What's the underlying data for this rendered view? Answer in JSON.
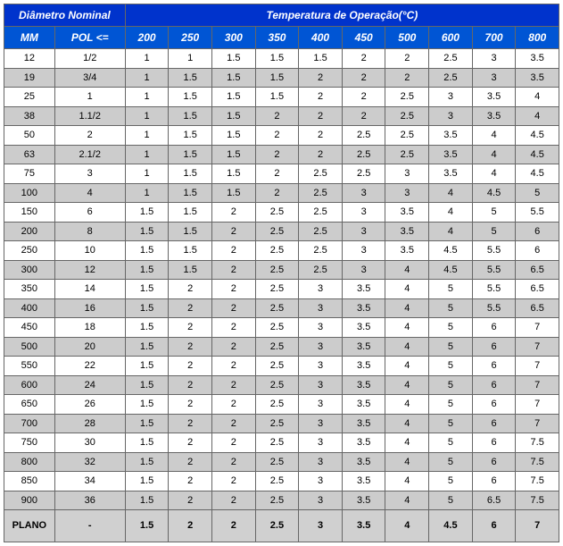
{
  "header": {
    "group_left": "Diâmetro Nominal",
    "group_right": "Temperatura de Operação(°C)",
    "sub": [
      "MM",
      "POL <=",
      "200",
      "250",
      "300",
      "350",
      "400",
      "450",
      "500",
      "600",
      "700",
      "800"
    ]
  },
  "rows": [
    {
      "alt": false,
      "c": [
        "12",
        "1/2",
        "1",
        "1",
        "1.5",
        "1.5",
        "1.5",
        "2",
        "2",
        "2.5",
        "3",
        "3.5"
      ]
    },
    {
      "alt": true,
      "c": [
        "19",
        "3/4",
        "1",
        "1.5",
        "1.5",
        "1.5",
        "2",
        "2",
        "2",
        "2.5",
        "3",
        "3.5"
      ]
    },
    {
      "alt": false,
      "c": [
        "25",
        "1",
        "1",
        "1.5",
        "1.5",
        "1.5",
        "2",
        "2",
        "2.5",
        "3",
        "3.5",
        "4"
      ]
    },
    {
      "alt": true,
      "c": [
        "38",
        "1.1/2",
        "1",
        "1.5",
        "1.5",
        "2",
        "2",
        "2",
        "2.5",
        "3",
        "3.5",
        "4"
      ]
    },
    {
      "alt": false,
      "c": [
        "50",
        "2",
        "1",
        "1.5",
        "1.5",
        "2",
        "2",
        "2.5",
        "2.5",
        "3.5",
        "4",
        "4.5"
      ]
    },
    {
      "alt": true,
      "c": [
        "63",
        "2.1/2",
        "1",
        "1.5",
        "1.5",
        "2",
        "2",
        "2.5",
        "2.5",
        "3.5",
        "4",
        "4.5"
      ]
    },
    {
      "alt": false,
      "c": [
        "75",
        "3",
        "1",
        "1.5",
        "1.5",
        "2",
        "2.5",
        "2.5",
        "3",
        "3.5",
        "4",
        "4.5"
      ]
    },
    {
      "alt": true,
      "c": [
        "100",
        "4",
        "1",
        "1.5",
        "1.5",
        "2",
        "2.5",
        "3",
        "3",
        "4",
        "4.5",
        "5"
      ]
    },
    {
      "alt": false,
      "c": [
        "150",
        "6",
        "1.5",
        "1.5",
        "2",
        "2.5",
        "2.5",
        "3",
        "3.5",
        "4",
        "5",
        "5.5"
      ]
    },
    {
      "alt": true,
      "c": [
        "200",
        "8",
        "1.5",
        "1.5",
        "2",
        "2.5",
        "2.5",
        "3",
        "3.5",
        "4",
        "5",
        "6"
      ]
    },
    {
      "alt": false,
      "c": [
        "250",
        "10",
        "1.5",
        "1.5",
        "2",
        "2.5",
        "2.5",
        "3",
        "3.5",
        "4.5",
        "5.5",
        "6"
      ]
    },
    {
      "alt": true,
      "c": [
        "300",
        "12",
        "1.5",
        "1.5",
        "2",
        "2.5",
        "2.5",
        "3",
        "4",
        "4.5",
        "5.5",
        "6.5"
      ]
    },
    {
      "alt": false,
      "c": [
        "350",
        "14",
        "1.5",
        "2",
        "2",
        "2.5",
        "3",
        "3.5",
        "4",
        "5",
        "5.5",
        "6.5"
      ]
    },
    {
      "alt": true,
      "c": [
        "400",
        "16",
        "1.5",
        "2",
        "2",
        "2.5",
        "3",
        "3.5",
        "4",
        "5",
        "5.5",
        "6.5"
      ]
    },
    {
      "alt": false,
      "c": [
        "450",
        "18",
        "1.5",
        "2",
        "2",
        "2.5",
        "3",
        "3.5",
        "4",
        "5",
        "6",
        "7"
      ]
    },
    {
      "alt": true,
      "c": [
        "500",
        "20",
        "1.5",
        "2",
        "2",
        "2.5",
        "3",
        "3.5",
        "4",
        "5",
        "6",
        "7"
      ]
    },
    {
      "alt": false,
      "c": [
        "550",
        "22",
        "1.5",
        "2",
        "2",
        "2.5",
        "3",
        "3.5",
        "4",
        "5",
        "6",
        "7"
      ]
    },
    {
      "alt": true,
      "c": [
        "600",
        "24",
        "1.5",
        "2",
        "2",
        "2.5",
        "3",
        "3.5",
        "4",
        "5",
        "6",
        "7"
      ]
    },
    {
      "alt": false,
      "c": [
        "650",
        "26",
        "1.5",
        "2",
        "2",
        "2.5",
        "3",
        "3.5",
        "4",
        "5",
        "6",
        "7"
      ]
    },
    {
      "alt": true,
      "c": [
        "700",
        "28",
        "1.5",
        "2",
        "2",
        "2.5",
        "3",
        "3.5",
        "4",
        "5",
        "6",
        "7"
      ]
    },
    {
      "alt": false,
      "c": [
        "750",
        "30",
        "1.5",
        "2",
        "2",
        "2.5",
        "3",
        "3.5",
        "4",
        "5",
        "6",
        "7.5"
      ]
    },
    {
      "alt": true,
      "c": [
        "800",
        "32",
        "1.5",
        "2",
        "2",
        "2.5",
        "3",
        "3.5",
        "4",
        "5",
        "6",
        "7.5"
      ]
    },
    {
      "alt": false,
      "c": [
        "850",
        "34",
        "1.5",
        "2",
        "2",
        "2.5",
        "3",
        "3.5",
        "4",
        "5",
        "6",
        "7.5"
      ]
    },
    {
      "alt": true,
      "c": [
        "900",
        "36",
        "1.5",
        "2",
        "2",
        "2.5",
        "3",
        "3.5",
        "4",
        "5",
        "6.5",
        "7.5"
      ]
    }
  ],
  "plano": {
    "label": "PLANO",
    "c": [
      "-",
      "1.5",
      "2",
      "2",
      "2.5",
      "3",
      "3.5",
      "4",
      "4.5",
      "6",
      "7"
    ]
  },
  "colors": {
    "header_top_bg": "#0033cc",
    "header_sub_bg": "#0055d4",
    "header_fg": "#ffffff",
    "row_alt_bg": "#cccccc",
    "row_bg": "#ffffff",
    "plano_bg": "#d0d0d0",
    "border": "#666666"
  }
}
